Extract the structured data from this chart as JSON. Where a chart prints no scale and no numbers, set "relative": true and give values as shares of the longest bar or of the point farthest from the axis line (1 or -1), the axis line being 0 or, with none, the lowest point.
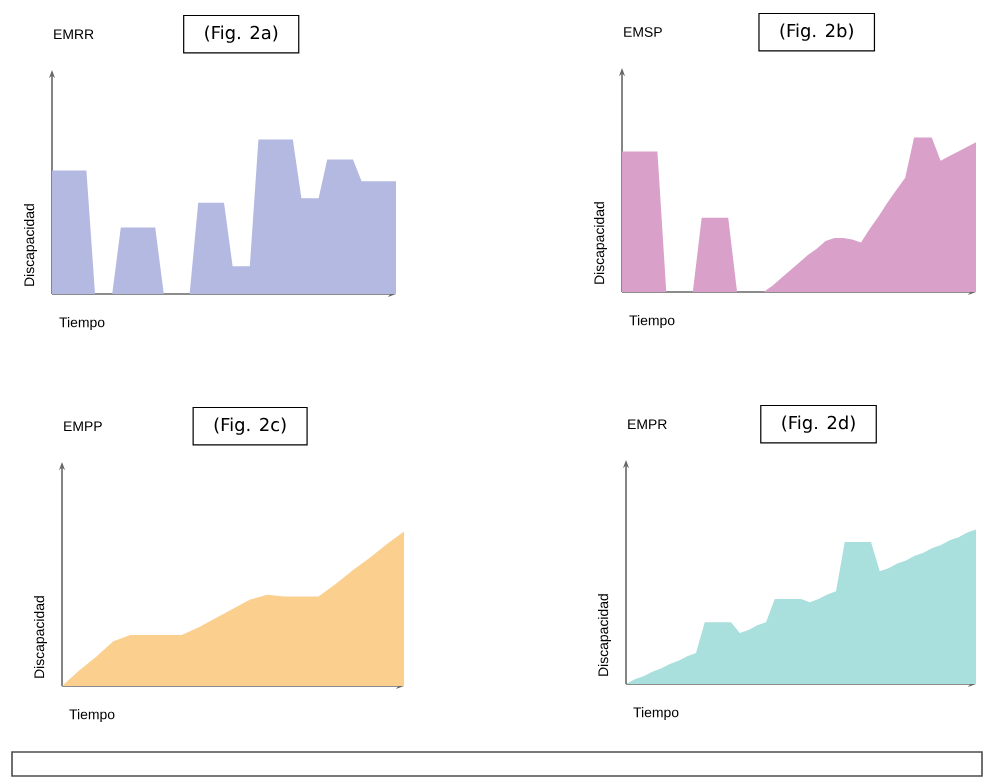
{
  "chart_data": [
    {
      "type": "area",
      "title": "EMRR",
      "xlabel": "Tiempo",
      "ylabel": "Discapacidad",
      "annotations": [
        "(Fig. 2a)"
      ],
      "relative": true,
      "color": "#b4b9e2",
      "categories": [
        null,
        null,
        null,
        null,
        null,
        null,
        null,
        null,
        null,
        null,
        null,
        null,
        null,
        null,
        null,
        null,
        null,
        null,
        null,
        null,
        null,
        null,
        null,
        null,
        null,
        null,
        null,
        null,
        null,
        null,
        null,
        null,
        null,
        null,
        null,
        null,
        null,
        null,
        null,
        null,
        null
      ],
      "values": [
        0.8,
        0.8,
        0.8,
        0.8,
        0.8,
        0,
        0,
        0,
        0.43,
        0.43,
        0.43,
        0.43,
        0.43,
        0,
        0,
        0,
        0,
        0.59,
        0.59,
        0.59,
        0.59,
        0.18,
        0.18,
        0.18,
        1,
        1,
        1,
        1,
        1,
        0.62,
        0.62,
        0.62,
        0.87,
        0.87,
        0.87,
        0.87,
        0.73,
        0.73,
        0.73,
        0.73,
        0.73
      ]
    },
    {
      "type": "area",
      "title": "EMSP",
      "xlabel": "Tiempo",
      "ylabel": "Discapacidad",
      "annotations": [
        "(Fig. 2b)"
      ],
      "relative": true,
      "color": "#d9a0c9",
      "categories": [
        null,
        null,
        null,
        null,
        null,
        null,
        null,
        null,
        null,
        null,
        null,
        null,
        null,
        null,
        null,
        null,
        null,
        null,
        null,
        null,
        null,
        null,
        null,
        null,
        null,
        null,
        null,
        null,
        null,
        null,
        null,
        null,
        null,
        null,
        null,
        null,
        null,
        null,
        null,
        null,
        null
      ],
      "values": [
        0.91,
        0.91,
        0.91,
        0.91,
        0.91,
        0,
        0,
        0,
        0,
        0.48,
        0.48,
        0.48,
        0.48,
        0,
        0,
        0,
        0,
        0.04,
        0.09,
        0.14,
        0.19,
        0.24,
        0.28,
        0.33,
        0.35,
        0.35,
        0.34,
        0.32,
        0.41,
        0.49,
        0.58,
        0.66,
        0.74,
        1,
        1,
        1,
        0.85,
        0.88,
        0.91,
        0.94,
        0.97
      ]
    },
    {
      "type": "area",
      "title": "EMPP",
      "xlabel": "Tiempo",
      "ylabel": "Discapacidad",
      "annotations": [
        "(Fig. 2c)"
      ],
      "relative": true,
      "color": "#fbd08f",
      "categories": [
        null,
        null,
        null,
        null,
        null,
        null,
        null,
        null,
        null,
        null,
        null,
        null,
        null,
        null,
        null,
        null,
        null,
        null,
        null,
        null,
        null
      ],
      "values": [
        0,
        0.1,
        0.19,
        0.29,
        0.33,
        0.33,
        0.33,
        0.33,
        0.38,
        0.44,
        0.5,
        0.56,
        0.59,
        0.58,
        0.58,
        0.58,
        0.66,
        0.75,
        0.83,
        0.92,
        1
      ]
    },
    {
      "type": "area",
      "title": "EMPR",
      "xlabel": "Tiempo",
      "ylabel": "Discapacidad",
      "annotations": [
        "(Fig. 2d)"
      ],
      "relative": true,
      "color": "#a9dfdc",
      "categories": [
        null,
        null,
        null,
        null,
        null,
        null,
        null,
        null,
        null,
        null,
        null,
        null,
        null,
        null,
        null,
        null,
        null,
        null,
        null,
        null,
        null,
        null,
        null,
        null,
        null,
        null,
        null,
        null,
        null,
        null,
        null,
        null,
        null,
        null,
        null,
        null,
        null,
        null,
        null,
        null,
        null
      ],
      "values": [
        0,
        0.03,
        0.05,
        0.08,
        0.1,
        0.13,
        0.15,
        0.18,
        0.2,
        0.4,
        0.4,
        0.4,
        0.4,
        0.33,
        0.35,
        0.38,
        0.4,
        0.55,
        0.55,
        0.55,
        0.55,
        0.53,
        0.55,
        0.58,
        0.6,
        0.92,
        0.92,
        0.92,
        0.92,
        0.73,
        0.75,
        0.78,
        0.8,
        0.83,
        0.85,
        0.88,
        0.9,
        0.93,
        0.95,
        0.98,
        1
      ]
    }
  ]
}
